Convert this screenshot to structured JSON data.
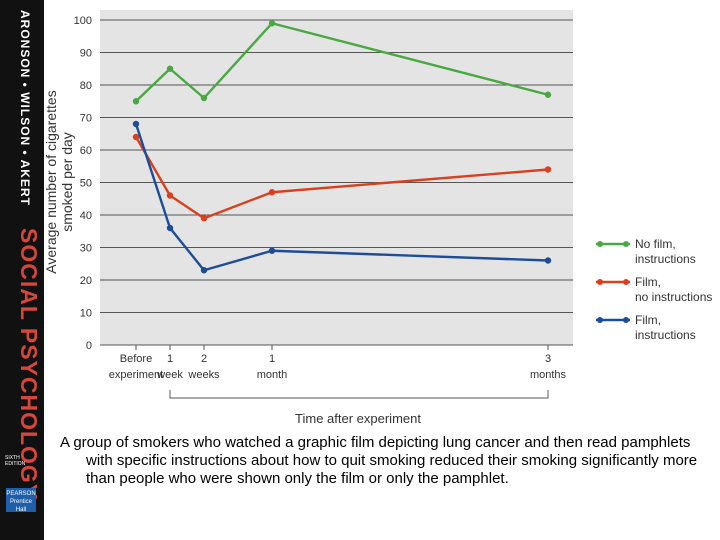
{
  "spine": {
    "authors": "ARONSON • WILSON • AKERT",
    "title": "SOCIAL PSYCHOLOGY",
    "edition": "SIXTH EDITION",
    "publisher": "PEARSON Prentice Hall"
  },
  "chart_data": {
    "type": "line",
    "title": "",
    "ylabel_line1": "Average number of cigarettes",
    "ylabel_line2": "smoked per day",
    "xlabel": "Time after experiment",
    "ylim": [
      0,
      100
    ],
    "yticks": [
      0,
      10,
      20,
      30,
      40,
      50,
      60,
      70,
      80,
      90,
      100
    ],
    "x_units": "weeks after experiment",
    "categories": [
      {
        "line1": "Before",
        "line2": "experiment",
        "x": 0
      },
      {
        "line1": "1",
        "line2": "week",
        "x": 1
      },
      {
        "line1": "2",
        "line2": "weeks",
        "x": 2
      },
      {
        "line1": "1",
        "line2": "month",
        "x": 4
      },
      {
        "line1": "3",
        "line2": "months",
        "x": 12
      }
    ],
    "series": [
      {
        "name": "No film, instructions",
        "legend_line1": "No film,",
        "legend_line2": "instructions",
        "color": "#4aa843",
        "values": [
          75,
          85,
          76,
          99,
          77
        ]
      },
      {
        "name": "Film, no instructions",
        "legend_line1": "Film,",
        "legend_line2": "no instructions",
        "color": "#d9401e",
        "values": [
          64,
          46,
          39,
          47,
          54
        ]
      },
      {
        "name": "Film, instructions",
        "legend_line1": "Film,",
        "legend_line2": "instructions",
        "color": "#1d4d99",
        "values": [
          68,
          36,
          23,
          29,
          26
        ]
      }
    ]
  },
  "caption": "A group of smokers who watched a graphic film depicting lung cancer and then read pamphlets with specific instructions about how to quit smoking reduced their smoking significantly more than people who were shown only the film or only the pamphlet."
}
